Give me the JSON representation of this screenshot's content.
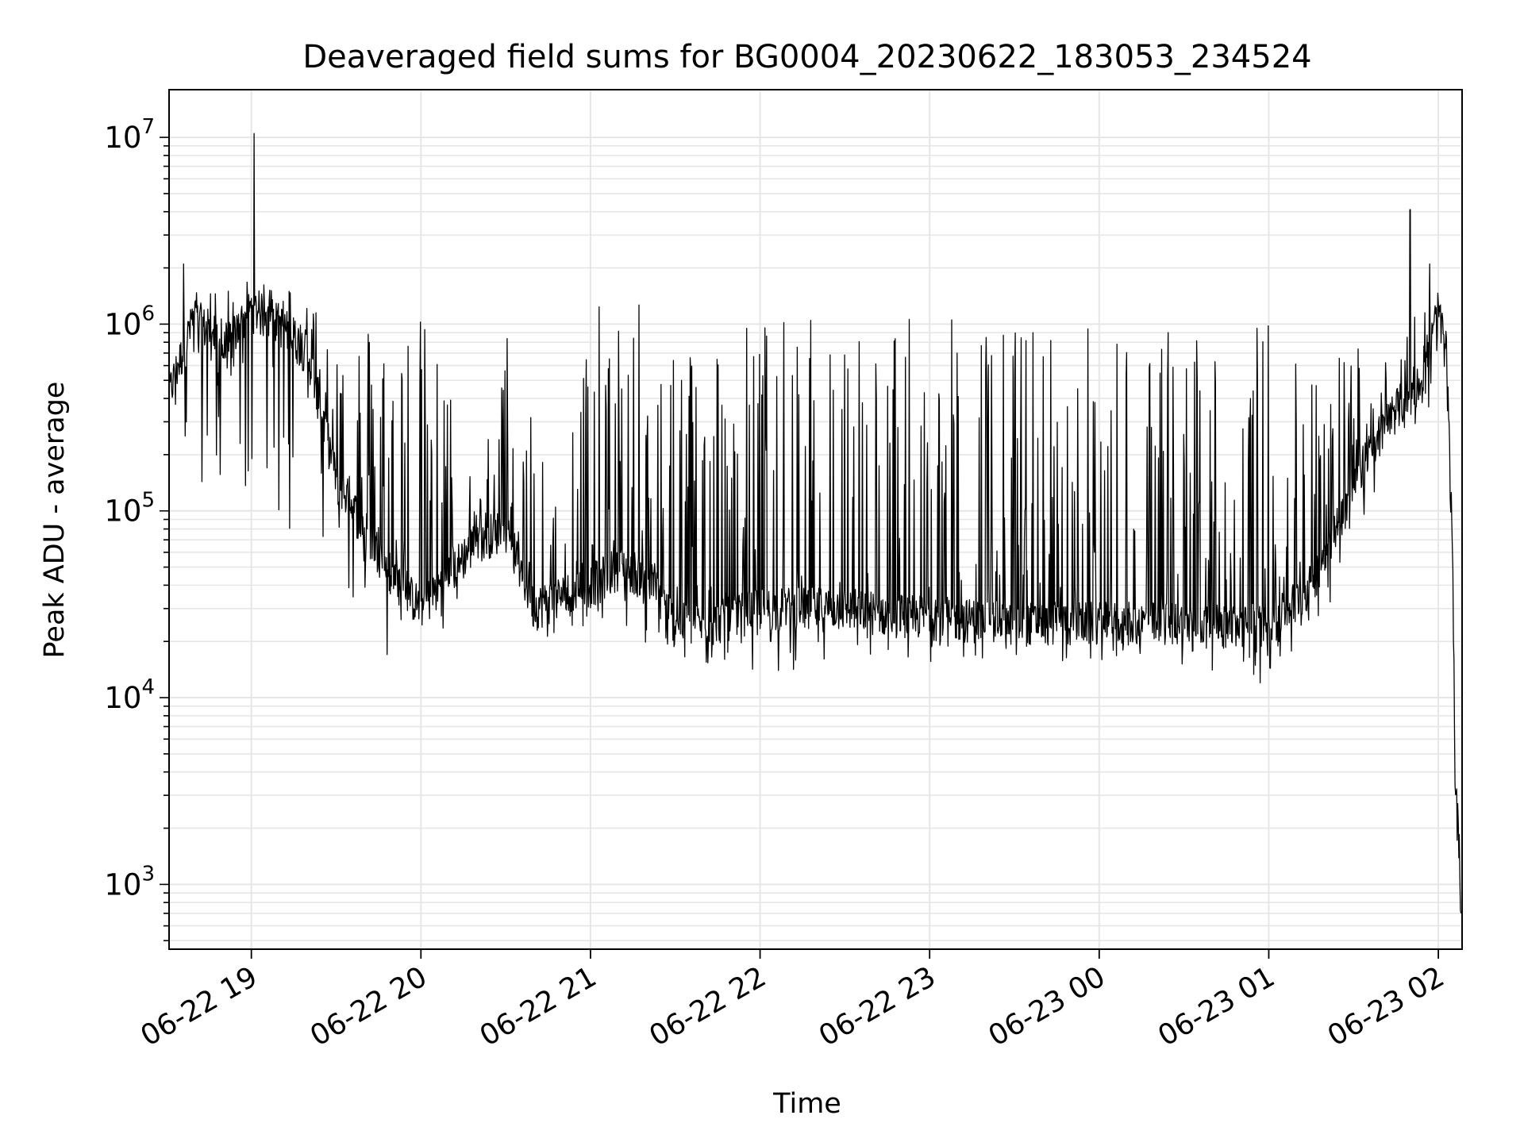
{
  "chart_data": {
    "type": "line",
    "title": "Deaveraged field sums for BG0004_20230622_183053_234524",
    "xlabel": "Time",
    "ylabel": "Peak ADU - average",
    "yscale": "log",
    "ylim": [
      450,
      18000000
    ],
    "xlim": [
      "2023-06-22 18:30:53",
      "2023-06-23 02:08:24"
    ],
    "x_ticks": [
      {
        "at": "2023-06-22 19:00",
        "label": "06-22 19"
      },
      {
        "at": "2023-06-22 20:00",
        "label": "06-22 20"
      },
      {
        "at": "2023-06-22 21:00",
        "label": "06-22 21"
      },
      {
        "at": "2023-06-22 22:00",
        "label": "06-22 22"
      },
      {
        "at": "2023-06-22 23:00",
        "label": "06-22 23"
      },
      {
        "at": "2023-06-23 00:00",
        "label": "06-23 00"
      },
      {
        "at": "2023-06-23 01:00",
        "label": "06-23 01"
      },
      {
        "at": "2023-06-23 02:00",
        "label": "06-23 02"
      }
    ],
    "y_ticks": [
      {
        "value": 1000,
        "base": "10",
        "exp": "3"
      },
      {
        "value": 10000,
        "base": "10",
        "exp": "4"
      },
      {
        "value": 100000,
        "base": "10",
        "exp": "5"
      },
      {
        "value": 1000000,
        "base": "10",
        "exp": "6"
      },
      {
        "value": 10000000,
        "base": "10",
        "exp": "7"
      }
    ],
    "grid": true,
    "line_color": "#000000",
    "grid_color": "#e6e6e6",
    "series": [
      {
        "envelope": {
          "x": [
            "2023-06-22 18:30:53",
            "2023-06-22 18:40",
            "2023-06-22 18:50",
            "2023-06-22 19:00",
            "2023-06-22 19:10",
            "2023-06-22 19:20",
            "2023-06-22 19:30",
            "2023-06-22 19:40",
            "2023-06-22 19:50",
            "2023-06-22 20:00",
            "2023-06-22 20:10",
            "2023-06-22 20:20",
            "2023-06-22 20:30",
            "2023-06-22 20:40",
            "2023-06-22 20:50",
            "2023-06-22 21:00",
            "2023-06-22 21:10",
            "2023-06-22 21:20",
            "2023-06-22 21:30",
            "2023-06-22 21:40",
            "2023-06-22 21:50",
            "2023-06-22 22:00",
            "2023-06-22 22:15",
            "2023-06-22 22:30",
            "2023-06-22 22:45",
            "2023-06-22 23:00",
            "2023-06-22 23:15",
            "2023-06-22 23:30",
            "2023-06-22 23:45",
            "2023-06-23 00:00",
            "2023-06-23 00:15",
            "2023-06-23 00:30",
            "2023-06-23 00:45",
            "2023-06-23 00:55",
            "2023-06-23 01:05",
            "2023-06-23 01:15",
            "2023-06-23 01:25",
            "2023-06-23 01:35",
            "2023-06-23 01:45",
            "2023-06-23 01:55",
            "2023-06-23 02:00",
            "2023-06-23 02:03",
            "2023-06-23 02:05",
            "2023-06-23 02:06",
            "2023-06-23 02:07",
            "2023-06-23 02:08"
          ],
          "baseline": [
            420000,
            1100000,
            700000,
            1200000,
            1000000,
            700000,
            150000,
            80000,
            45000,
            30000,
            45000,
            70000,
            80000,
            30000,
            35000,
            40000,
            50000,
            45000,
            25000,
            24000,
            27000,
            30000,
            30000,
            30000,
            28000,
            27000,
            26000,
            25000,
            25000,
            25000,
            25000,
            25000,
            24000,
            24000,
            28000,
            40000,
            90000,
            200000,
            350000,
            500000,
            1200000,
            600000,
            60000,
            3000,
            2500,
            700
          ],
          "peak": [
            500000,
            1500000,
            1600000,
            1700000,
            1800000,
            1400000,
            1200000,
            1100000,
            1150000,
            1150000,
            500000,
            120000,
            1000000,
            450000,
            280000,
            1200000,
            1400000,
            1300000,
            1000000,
            1000000,
            1100000,
            1100000,
            1100000,
            1150000,
            1100000,
            1100000,
            1050000,
            1050000,
            1000000,
            1050000,
            1000000,
            1000000,
            1000000,
            1050000,
            1200000,
            600000,
            800000,
            900000,
            1000000,
            1400000,
            1300000,
            900000,
            60000,
            3200,
            2800,
            700
          ],
          "trough": [
            380000,
            150000,
            120000,
            100000,
            80000,
            50000,
            40000,
            30000,
            25000,
            22000,
            24000,
            55000,
            50000,
            18000,
            20000,
            25000,
            25000,
            16000,
            14000,
            15000,
            13000,
            13000,
            13000,
            14000,
            14000,
            15000,
            15000,
            16000,
            15000,
            16000,
            15000,
            14000,
            14000,
            13000,
            15000,
            20000,
            40000,
            100000,
            250000,
            300000,
            450000,
            400000,
            50000,
            1400,
            1800,
            700
          ]
        },
        "spikes": [
          {
            "x": "2023-06-22 18:36",
            "y": 2100000
          },
          {
            "x": "2023-06-22 19:01",
            "y": 10500000
          },
          {
            "x": "2023-06-22 19:48",
            "y": 17000
          },
          {
            "x": "2023-06-23 00:57",
            "y": 12000
          },
          {
            "x": "2023-06-23 01:50",
            "y": 4100000
          },
          {
            "x": "2023-06-23 01:57",
            "y": 2100000
          }
        ]
      }
    ]
  }
}
